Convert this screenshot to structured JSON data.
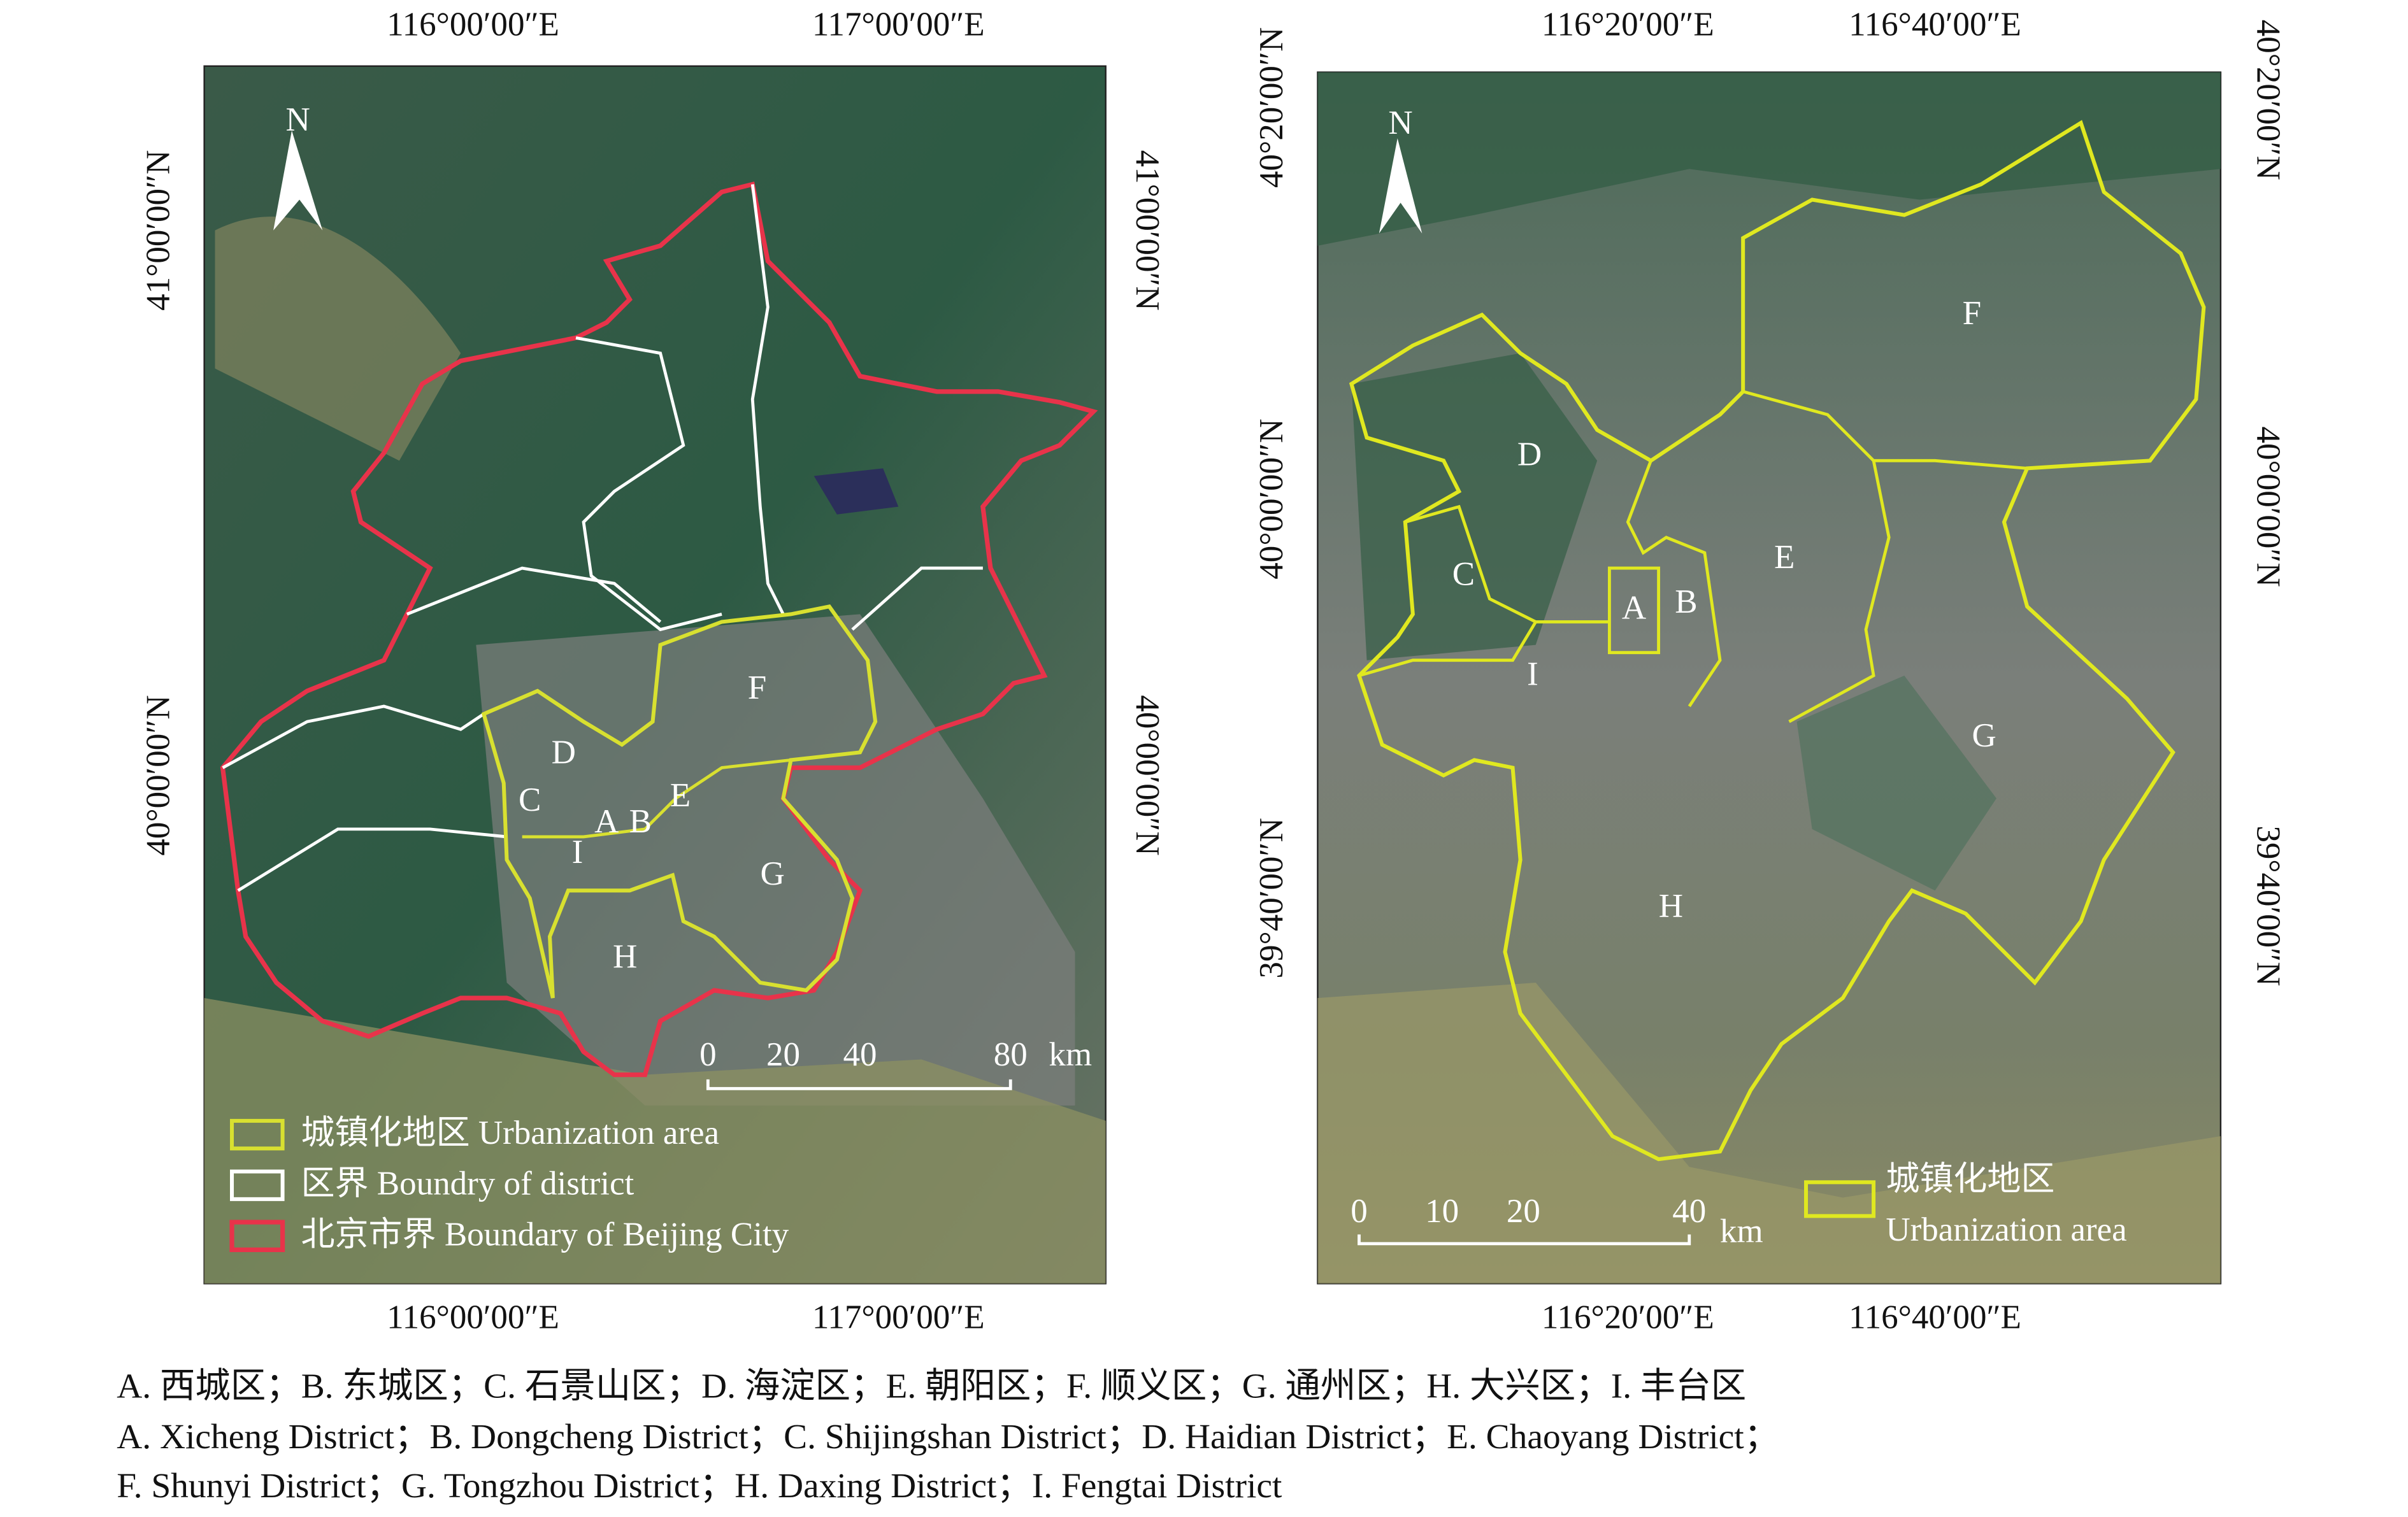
{
  "left_map": {
    "lon_labels": [
      "116°00′00″E",
      "117°00′00″E"
    ],
    "lat_labels": [
      "41°00′00″N",
      "40°00′00″N"
    ],
    "north": "N",
    "district_labels": [
      "A",
      "B",
      "C",
      "D",
      "E",
      "F",
      "G",
      "H",
      "I"
    ],
    "scale_bar": [
      "0",
      "20",
      "40",
      "80",
      "km"
    ],
    "legend": [
      "城镇化地区 Urbanization area",
      "区界 Boundry of district",
      "北京市界 Boundary of Beijing City"
    ]
  },
  "right_map": {
    "lon_labels": [
      "116°20′00″E",
      "116°40′00″E"
    ],
    "lat_labels": [
      "40°20′00″N",
      "40°00′00″N",
      "39°40′00″N"
    ],
    "north": "N",
    "district_labels": [
      "A",
      "B",
      "C",
      "D",
      "E",
      "F",
      "G",
      "H",
      "I"
    ],
    "scale_bar": [
      "0",
      "10",
      "20",
      "40",
      "km"
    ],
    "legend": [
      "城镇化地区",
      "Urbanization area"
    ]
  },
  "caption": [
    "A. 西城区；B. 东城区；C. 石景山区；D. 海淀区；E. 朝阳区；F. 顺义区；G. 通州区；H. 大兴区；I. 丰台区",
    "A. Xicheng District；B. Dongcheng District；C. Shijingshan District；D. Haidian District；E. Chaoyang District；",
    "F. Shunyi District；G. Tongzhou District；H. Daxing District；I. Fengtai District"
  ]
}
